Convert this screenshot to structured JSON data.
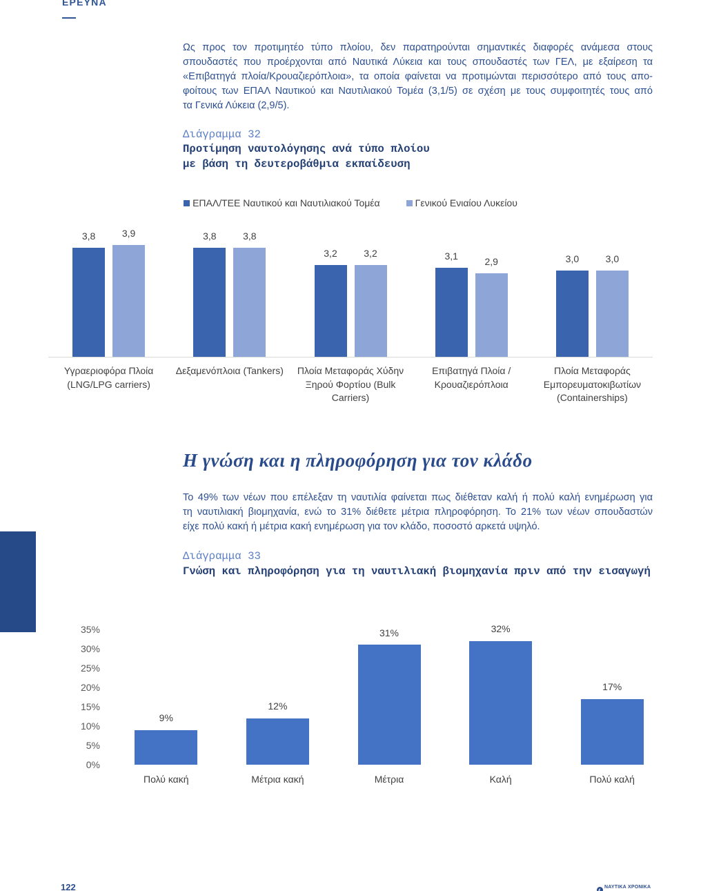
{
  "header": {
    "section_label": "ΕΡΕΥΝΑ"
  },
  "intro": {
    "lines": [
      "Ως προς τον προτιμητέο τύπο πλοίου, δεν παρατηρούνται σημαντικές διαφορές ανάμεσα στους",
      "σπουδαστές που προέρχονται από Ναυτικά Λύκεια και τους σπουδαστές των ΓΕΛ, με εξαίρεση τα",
      "«Επιβατηγά πλοία/Κρουαζιερόπλοια», τα οποία φαίνεται να προτιμώνται περισσότερο από τους απο-",
      "φοίτους των ΕΠΑΛ Ναυτικού και Ναυτιλιακού Τομέα (3,1/5) σε σχέση με τους συμφοιτητές τους από",
      "τα Γενικά Λύκεια (2,9/5)."
    ]
  },
  "section": {
    "heading": "Η γνώση και η πληροφόρηση για τον κλάδο",
    "lines": [
      "Το 49% των νέων που επέλεξαν τη ναυτιλία φαίνεται πως διέθεταν καλή ή πολύ καλή ενημέρωση για",
      "τη ναυτιλιακή βιομηχανία, ενώ το 31% διέθετε μέτρια πληροφόρηση. Το 21% των νέων σπουδαστών",
      "είχε πολύ κακή ή μέτρια κακή ενημέρωση για τον κλάδο, ποσοστό αρκετά υψηλό."
    ]
  },
  "footer": {
    "page_number": "122",
    "logo_text": "ΝΑΥΤΙΚΑ ΧΡΟΝΙΚΑ",
    "logo_icon": "ship-emblem-icon"
  },
  "theme": {
    "brand_blue": "#2c4f91",
    "heading_blue": "#2a4b8b",
    "figure_label_blue": "#5b7fc6",
    "figure_title_navy": "#233f74",
    "side_tab": "#264a87"
  },
  "chart_data": [
    {
      "figure_label": "Διάγραμμα 32",
      "title": "Προτίμηση ναυτολόγησης ανά τύπο πλοίου με βάση τη δευτεροβάθμια εκπαίδευση",
      "type": "bar",
      "categories": [
        "Υγραεριοφόρα Πλοία (LNG/LPG carriers)",
        "Δεξαμενόπλοια (Tankers)",
        "Πλοία Μεταφοράς Χύδην Ξηρού Φορτίου (Bulk Carriers)",
        "Επιβατηγά Πλοία / Κρουαζιερόπλοια",
        "Πλοία Μεταφοράς Εμπορευματοκιβωτίων (Containerships)"
      ],
      "series": [
        {
          "name": "ΕΠΑΛ/ΤΕΕ Ναυτικού και Ναυτιλιακού Τομέα",
          "values": [
            3.8,
            3.8,
            3.2,
            3.1,
            3.0
          ],
          "labels": [
            "3,8",
            "3,8",
            "3,2",
            "3,1",
            "3,0"
          ],
          "color": "#3b64ae"
        },
        {
          "name": "Γενικού Ενιαίου Λυκείου",
          "values": [
            3.9,
            3.8,
            3.2,
            2.9,
            3.0
          ],
          "labels": [
            "3,9",
            "3,8",
            "3,2",
            "2,9",
            "3,0"
          ],
          "color": "#8ea5d7"
        }
      ],
      "legend": "top",
      "grid": false
    },
    {
      "figure_label": "Διάγραμμα 33",
      "title": "Γνώση και πληροφόρηση για τη ναυτιλιακή βιομηχανία πριν από την εισαγωγή",
      "type": "bar",
      "categories": [
        "Πολύ κακή",
        "Μέτρια κακή",
        "Μέτρια",
        "Καλή",
        "Πολύ καλή"
      ],
      "values": [
        9,
        12,
        31,
        32,
        17
      ],
      "labels": [
        "9%",
        "12%",
        "31%",
        "32%",
        "17%"
      ],
      "ylim": [
        0,
        35
      ],
      "yticks": [
        "0%",
        "5%",
        "10%",
        "15%",
        "20%",
        "25%",
        "30%",
        "35%"
      ],
      "color": "#4472c4",
      "grid": false
    }
  ]
}
